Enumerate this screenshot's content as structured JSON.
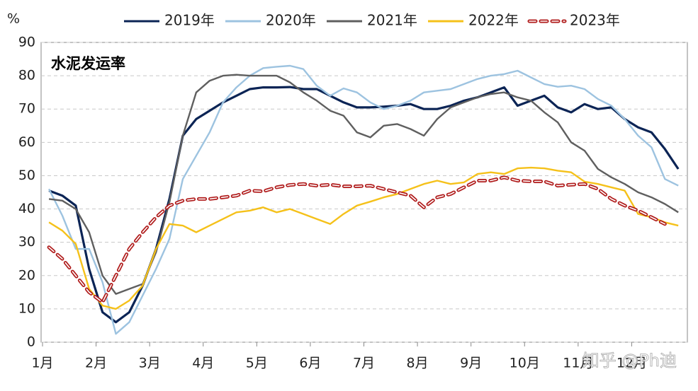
{
  "chart_data": {
    "type": "line",
    "title": "水泥发运率",
    "y_label": "%",
    "watermark": "知乎 @Ph迪",
    "xlim": [
      1,
      13
    ],
    "xticks": [
      {
        "value": 1,
        "label": "1月"
      },
      {
        "value": 2,
        "label": "2月"
      },
      {
        "value": 3,
        "label": "3月"
      },
      {
        "value": 4,
        "label": "4月"
      },
      {
        "value": 5,
        "label": "5月"
      },
      {
        "value": 6,
        "label": "6月"
      },
      {
        "value": 7,
        "label": "7月"
      },
      {
        "value": 8,
        "label": "8月"
      },
      {
        "value": 9,
        "label": "9月"
      },
      {
        "value": 10,
        "label": "10月"
      },
      {
        "value": 11,
        "label": "11月"
      },
      {
        "value": 12,
        "label": "12月"
      }
    ],
    "ylim": [
      0,
      90
    ],
    "yticks": [
      0,
      10,
      20,
      30,
      40,
      50,
      60,
      70,
      80,
      90
    ],
    "grid": true,
    "legend": "top",
    "x": [
      1.12,
      1.37,
      1.62,
      1.87,
      2.12,
      2.37,
      2.62,
      2.87,
      3.12,
      3.37,
      3.62,
      3.87,
      4.12,
      4.37,
      4.62,
      4.87,
      5.12,
      5.37,
      5.62,
      5.87,
      6.12,
      6.37,
      6.62,
      6.87,
      7.12,
      7.37,
      7.62,
      7.87,
      8.12,
      8.37,
      8.62,
      8.87,
      9.12,
      9.37,
      9.62,
      9.87,
      10.12,
      10.37,
      10.62,
      10.87,
      11.12,
      11.37,
      11.62,
      11.87,
      12.12,
      12.37,
      12.62,
      12.87
    ],
    "series": [
      {
        "name": "2019年",
        "color": "#0b2455",
        "style": "solid",
        "values": [
          45.5,
          44,
          41,
          22,
          9,
          6,
          9,
          17,
          28,
          43,
          62,
          67,
          69.5,
          72,
          74,
          76,
          76.5,
          76.5,
          76.6,
          76,
          76,
          74,
          72,
          70.5,
          70.5,
          70.7,
          71,
          71.5,
          70,
          70,
          71,
          72.5,
          73.5,
          75,
          76.5,
          71,
          72.5,
          74,
          70.5,
          69,
          71.5,
          70,
          70.5,
          67,
          64.5,
          63,
          58,
          52
        ]
      },
      {
        "name": "2020年",
        "color": "#9dc3e0",
        "style": "solid",
        "values": [
          46,
          38,
          28,
          28,
          18,
          2.5,
          6,
          14,
          22,
          31,
          49,
          56,
          63,
          72,
          76.5,
          80,
          82.3,
          82.7,
          83,
          82,
          77,
          74,
          76.2,
          75,
          72,
          70,
          71,
          72.5,
          75,
          75.5,
          76,
          77.5,
          79,
          80,
          80.5,
          81.5,
          79.5,
          77.5,
          76.7,
          77,
          76,
          73,
          71,
          67,
          62,
          58.5,
          49,
          47
        ]
      },
      {
        "name": "2021年",
        "color": "#5f5f5f",
        "style": "solid",
        "values": [
          43,
          42.5,
          40,
          33,
          20,
          14.5,
          16,
          17.5,
          27,
          42,
          62,
          75,
          78.5,
          80,
          80.3,
          80,
          80,
          80,
          78,
          75,
          72.5,
          69.5,
          68,
          63,
          61.5,
          65,
          65.5,
          64,
          62,
          67,
          70.5,
          72,
          73.5,
          74.5,
          75,
          73.5,
          72.5,
          69,
          66,
          60,
          57.5,
          52,
          49.5,
          47.5,
          45,
          43.5,
          41.5,
          39
        ]
      },
      {
        "name": "2022年",
        "color": "#f5c11a",
        "style": "solid",
        "values": [
          36,
          33.5,
          29.5,
          16,
          11,
          10,
          12.5,
          17,
          28,
          35.5,
          35,
          33,
          35,
          37,
          39,
          39.5,
          40.5,
          39,
          40,
          38.5,
          37,
          35.5,
          38.5,
          41,
          42.2,
          43.5,
          44.5,
          46,
          47.5,
          48.5,
          47.5,
          48,
          50.5,
          51,
          50.5,
          52.2,
          52.4,
          52.2,
          51.5,
          51,
          48.2,
          47.5,
          46.5,
          45.5,
          38.5,
          37.5,
          36,
          35
        ]
      },
      {
        "name": "2023年",
        "color": "#b01c1c",
        "style": "dashed",
        "values": [
          28.5,
          25,
          20,
          15,
          12,
          20,
          28,
          33,
          37.5,
          41,
          42.5,
          43,
          43,
          43.5,
          44,
          45.5,
          45.3,
          46.5,
          47.2,
          47.5,
          47,
          47.3,
          46.8,
          46.8,
          47,
          46,
          45,
          44,
          40.5,
          43.5,
          44.5,
          46.5,
          48.5,
          48.5,
          49.5,
          48.5,
          48.3,
          48.3,
          47,
          47.3,
          47.5,
          46,
          43,
          41,
          39.5,
          37.5,
          35.5,
          null
        ]
      }
    ]
  }
}
